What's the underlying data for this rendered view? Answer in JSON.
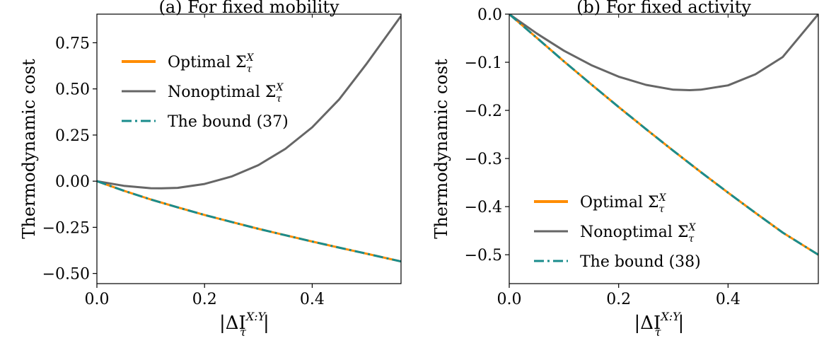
{
  "chart_data": [
    {
      "type": "line",
      "title": "(a) For fixed mobility",
      "xlabel": "|ΔI",
      "xlabel_sub": "τ",
      "xlabel_sup": "X:Y",
      "ylabel": "Thermodynamic cost",
      "xlim": [
        0.0,
        0.565
      ],
      "ylim": [
        -0.555,
        0.905
      ],
      "xticks": [
        0.0,
        0.2,
        0.4
      ],
      "xtick_labels": [
        "0.0",
        "0.2",
        "0.4"
      ],
      "yticks": [
        -0.5,
        -0.25,
        0.0,
        0.25,
        0.5,
        0.75
      ],
      "ytick_labels": [
        "−0.50",
        "−0.25",
        "0.00",
        "0.25",
        "0.50",
        "0.75"
      ],
      "legend_position": "top-left",
      "series": [
        {
          "name": "Optimal",
          "sym": "Σ",
          "sub": "τ",
          "sup": "X",
          "color": "#ff8c00",
          "style": "solid",
          "x": [
            0.0,
            0.05,
            0.1,
            0.15,
            0.2,
            0.25,
            0.3,
            0.35,
            0.4,
            0.45,
            0.5,
            0.565
          ],
          "y": [
            0.0,
            -0.052,
            -0.099,
            -0.142,
            -0.183,
            -0.221,
            -0.258,
            -0.293,
            -0.327,
            -0.36,
            -0.392,
            -0.435
          ]
        },
        {
          "name": "Nonoptimal",
          "sym": "Σ",
          "sub": "τ",
          "sup": "X",
          "color": "#666666",
          "style": "solid",
          "x": [
            0.0,
            0.05,
            0.1,
            0.12,
            0.15,
            0.2,
            0.25,
            0.3,
            0.35,
            0.4,
            0.45,
            0.5,
            0.565
          ],
          "y": [
            0.0,
            -0.025,
            -0.038,
            -0.039,
            -0.036,
            -0.015,
            0.025,
            0.087,
            0.175,
            0.292,
            0.443,
            0.632,
            0.895
          ]
        },
        {
          "name": "The bound (37)",
          "color": "#1a8c8c",
          "style": "dashdot",
          "x": [
            0.0,
            0.05,
            0.1,
            0.15,
            0.2,
            0.25,
            0.3,
            0.35,
            0.4,
            0.45,
            0.5,
            0.565
          ],
          "y": [
            0.0,
            -0.052,
            -0.099,
            -0.142,
            -0.183,
            -0.221,
            -0.258,
            -0.293,
            -0.327,
            -0.36,
            -0.392,
            -0.435
          ]
        }
      ]
    },
    {
      "type": "line",
      "title": "(b) For fixed activity",
      "xlabel": "|ΔI",
      "xlabel_sub": "τ",
      "xlabel_sup": "X:Y",
      "ylabel": "Thermodynamic cost",
      "xlim": [
        0.0,
        0.565
      ],
      "ylim": [
        -0.56,
        0.0
      ],
      "xticks": [
        0.0,
        0.2,
        0.4
      ],
      "xtick_labels": [
        "0.0",
        "0.2",
        "0.4"
      ],
      "yticks": [
        -0.5,
        -0.4,
        -0.3,
        -0.2,
        -0.1,
        0.0
      ],
      "ytick_labels": [
        "−0.5",
        "−0.4",
        "−0.3",
        "−0.2",
        "−0.1",
        "0.0"
      ],
      "legend_position": "lower-left",
      "series": [
        {
          "name": "Optimal",
          "sym": "Σ",
          "sub": "τ",
          "sup": "X",
          "color": "#ff8c00",
          "style": "solid",
          "x": [
            0.0,
            0.05,
            0.1,
            0.15,
            0.2,
            0.25,
            0.3,
            0.35,
            0.4,
            0.45,
            0.5,
            0.565
          ],
          "y": [
            0.0,
            -0.049,
            -0.098,
            -0.146,
            -0.193,
            -0.239,
            -0.284,
            -0.328,
            -0.371,
            -0.413,
            -0.454,
            -0.5
          ]
        },
        {
          "name": "Nonoptimal",
          "sym": "Σ",
          "sub": "τ",
          "sup": "X",
          "color": "#666666",
          "style": "solid",
          "x": [
            0.0,
            0.05,
            0.1,
            0.15,
            0.2,
            0.25,
            0.3,
            0.33,
            0.35,
            0.4,
            0.45,
            0.5,
            0.565
          ],
          "y": [
            0.0,
            -0.04,
            -0.076,
            -0.106,
            -0.13,
            -0.147,
            -0.157,
            -0.158,
            -0.157,
            -0.148,
            -0.125,
            -0.089,
            0.0
          ]
        },
        {
          "name": "The bound (38)",
          "color": "#1a8c8c",
          "style": "dashdot",
          "x": [
            0.0,
            0.05,
            0.1,
            0.15,
            0.2,
            0.25,
            0.3,
            0.35,
            0.4,
            0.45,
            0.5,
            0.565
          ],
          "y": [
            0.0,
            -0.049,
            -0.098,
            -0.146,
            -0.193,
            -0.239,
            -0.284,
            -0.328,
            -0.371,
            -0.413,
            -0.454,
            -0.5
          ]
        }
      ]
    }
  ]
}
